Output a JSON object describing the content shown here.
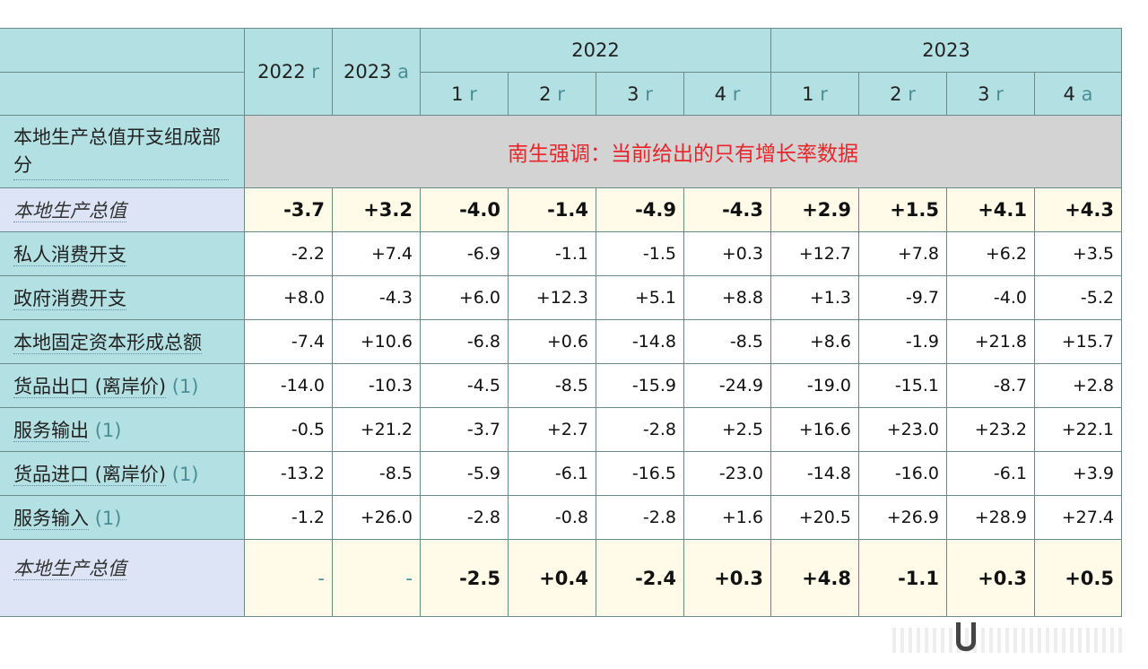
{
  "header": {
    "col_2022": "2022",
    "col_2023": "2023",
    "col_2022_suffix": "r",
    "col_2023_suffix": "a",
    "group_2022": "2022",
    "group_2023": "2023",
    "quarters": [
      {
        "q": "1",
        "s": "r"
      },
      {
        "q": "2",
        "s": "r"
      },
      {
        "q": "3",
        "s": "r"
      },
      {
        "q": "4",
        "s": "r"
      },
      {
        "q": "1",
        "s": "r"
      },
      {
        "q": "2",
        "s": "r"
      },
      {
        "q": "3",
        "s": "r"
      },
      {
        "q": "4",
        "s": "a"
      }
    ]
  },
  "section_title": "本地生产总值开支组成部分",
  "banner_note": "南生强调：当前给出的只有增长率数据",
  "rows": [
    {
      "label": "本地生产总值",
      "note": "",
      "values": [
        "-3.7",
        "+3.2",
        "-4.0",
        "-1.4",
        "-4.9",
        "-4.3",
        "+2.9",
        "+1.5",
        "+4.1",
        "+4.3"
      ]
    },
    {
      "label": "私人消费开支",
      "note": "",
      "values": [
        "-2.2",
        "+7.4",
        "-6.9",
        "-1.1",
        "-1.5",
        "+0.3",
        "+12.7",
        "+7.8",
        "+6.2",
        "+3.5"
      ]
    },
    {
      "label": "政府消费开支",
      "note": "",
      "values": [
        "+8.0",
        "-4.3",
        "+6.0",
        "+12.3",
        "+5.1",
        "+8.8",
        "+1.3",
        "-9.7",
        "-4.0",
        "-5.2"
      ]
    },
    {
      "label": "本地固定资本形成总额",
      "note": "",
      "values": [
        "-7.4",
        "+10.6",
        "-6.8",
        "+0.6",
        "-14.8",
        "-8.5",
        "+8.6",
        "-1.9",
        "+21.8",
        "+15.7"
      ]
    },
    {
      "label": "货品出口 (离岸价)",
      "note": "(1)",
      "values": [
        "-14.0",
        "-10.3",
        "-4.5",
        "-8.5",
        "-15.9",
        "-24.9",
        "-19.0",
        "-15.1",
        "-8.7",
        "+2.8"
      ]
    },
    {
      "label": "服务输出",
      "note": "(1)",
      "values": [
        "-0.5",
        "+21.2",
        "-3.7",
        "+2.7",
        "-2.8",
        "+2.5",
        "+16.6",
        "+23.0",
        "+23.2",
        "+22.1"
      ]
    },
    {
      "label": "货品进口 (离岸价)",
      "note": "(1)",
      "values": [
        "-13.2",
        "-8.5",
        "-5.9",
        "-6.1",
        "-16.5",
        "-23.0",
        "-14.8",
        "-16.0",
        "-6.1",
        "+3.9"
      ]
    },
    {
      "label": "服务输入",
      "note": "(1)",
      "values": [
        "-1.2",
        "+26.0",
        "-2.8",
        "-0.8",
        "-2.8",
        "+1.6",
        "+20.5",
        "+26.9",
        "+28.9",
        "+27.4"
      ]
    },
    {
      "label": "本地生产总值",
      "note": "",
      "values": [
        "-",
        "-",
        "-2.5",
        "+0.4",
        "-2.4",
        "+0.3",
        "+4.8",
        "-1.1",
        "+0.3",
        "+0.5"
      ]
    }
  ]
}
